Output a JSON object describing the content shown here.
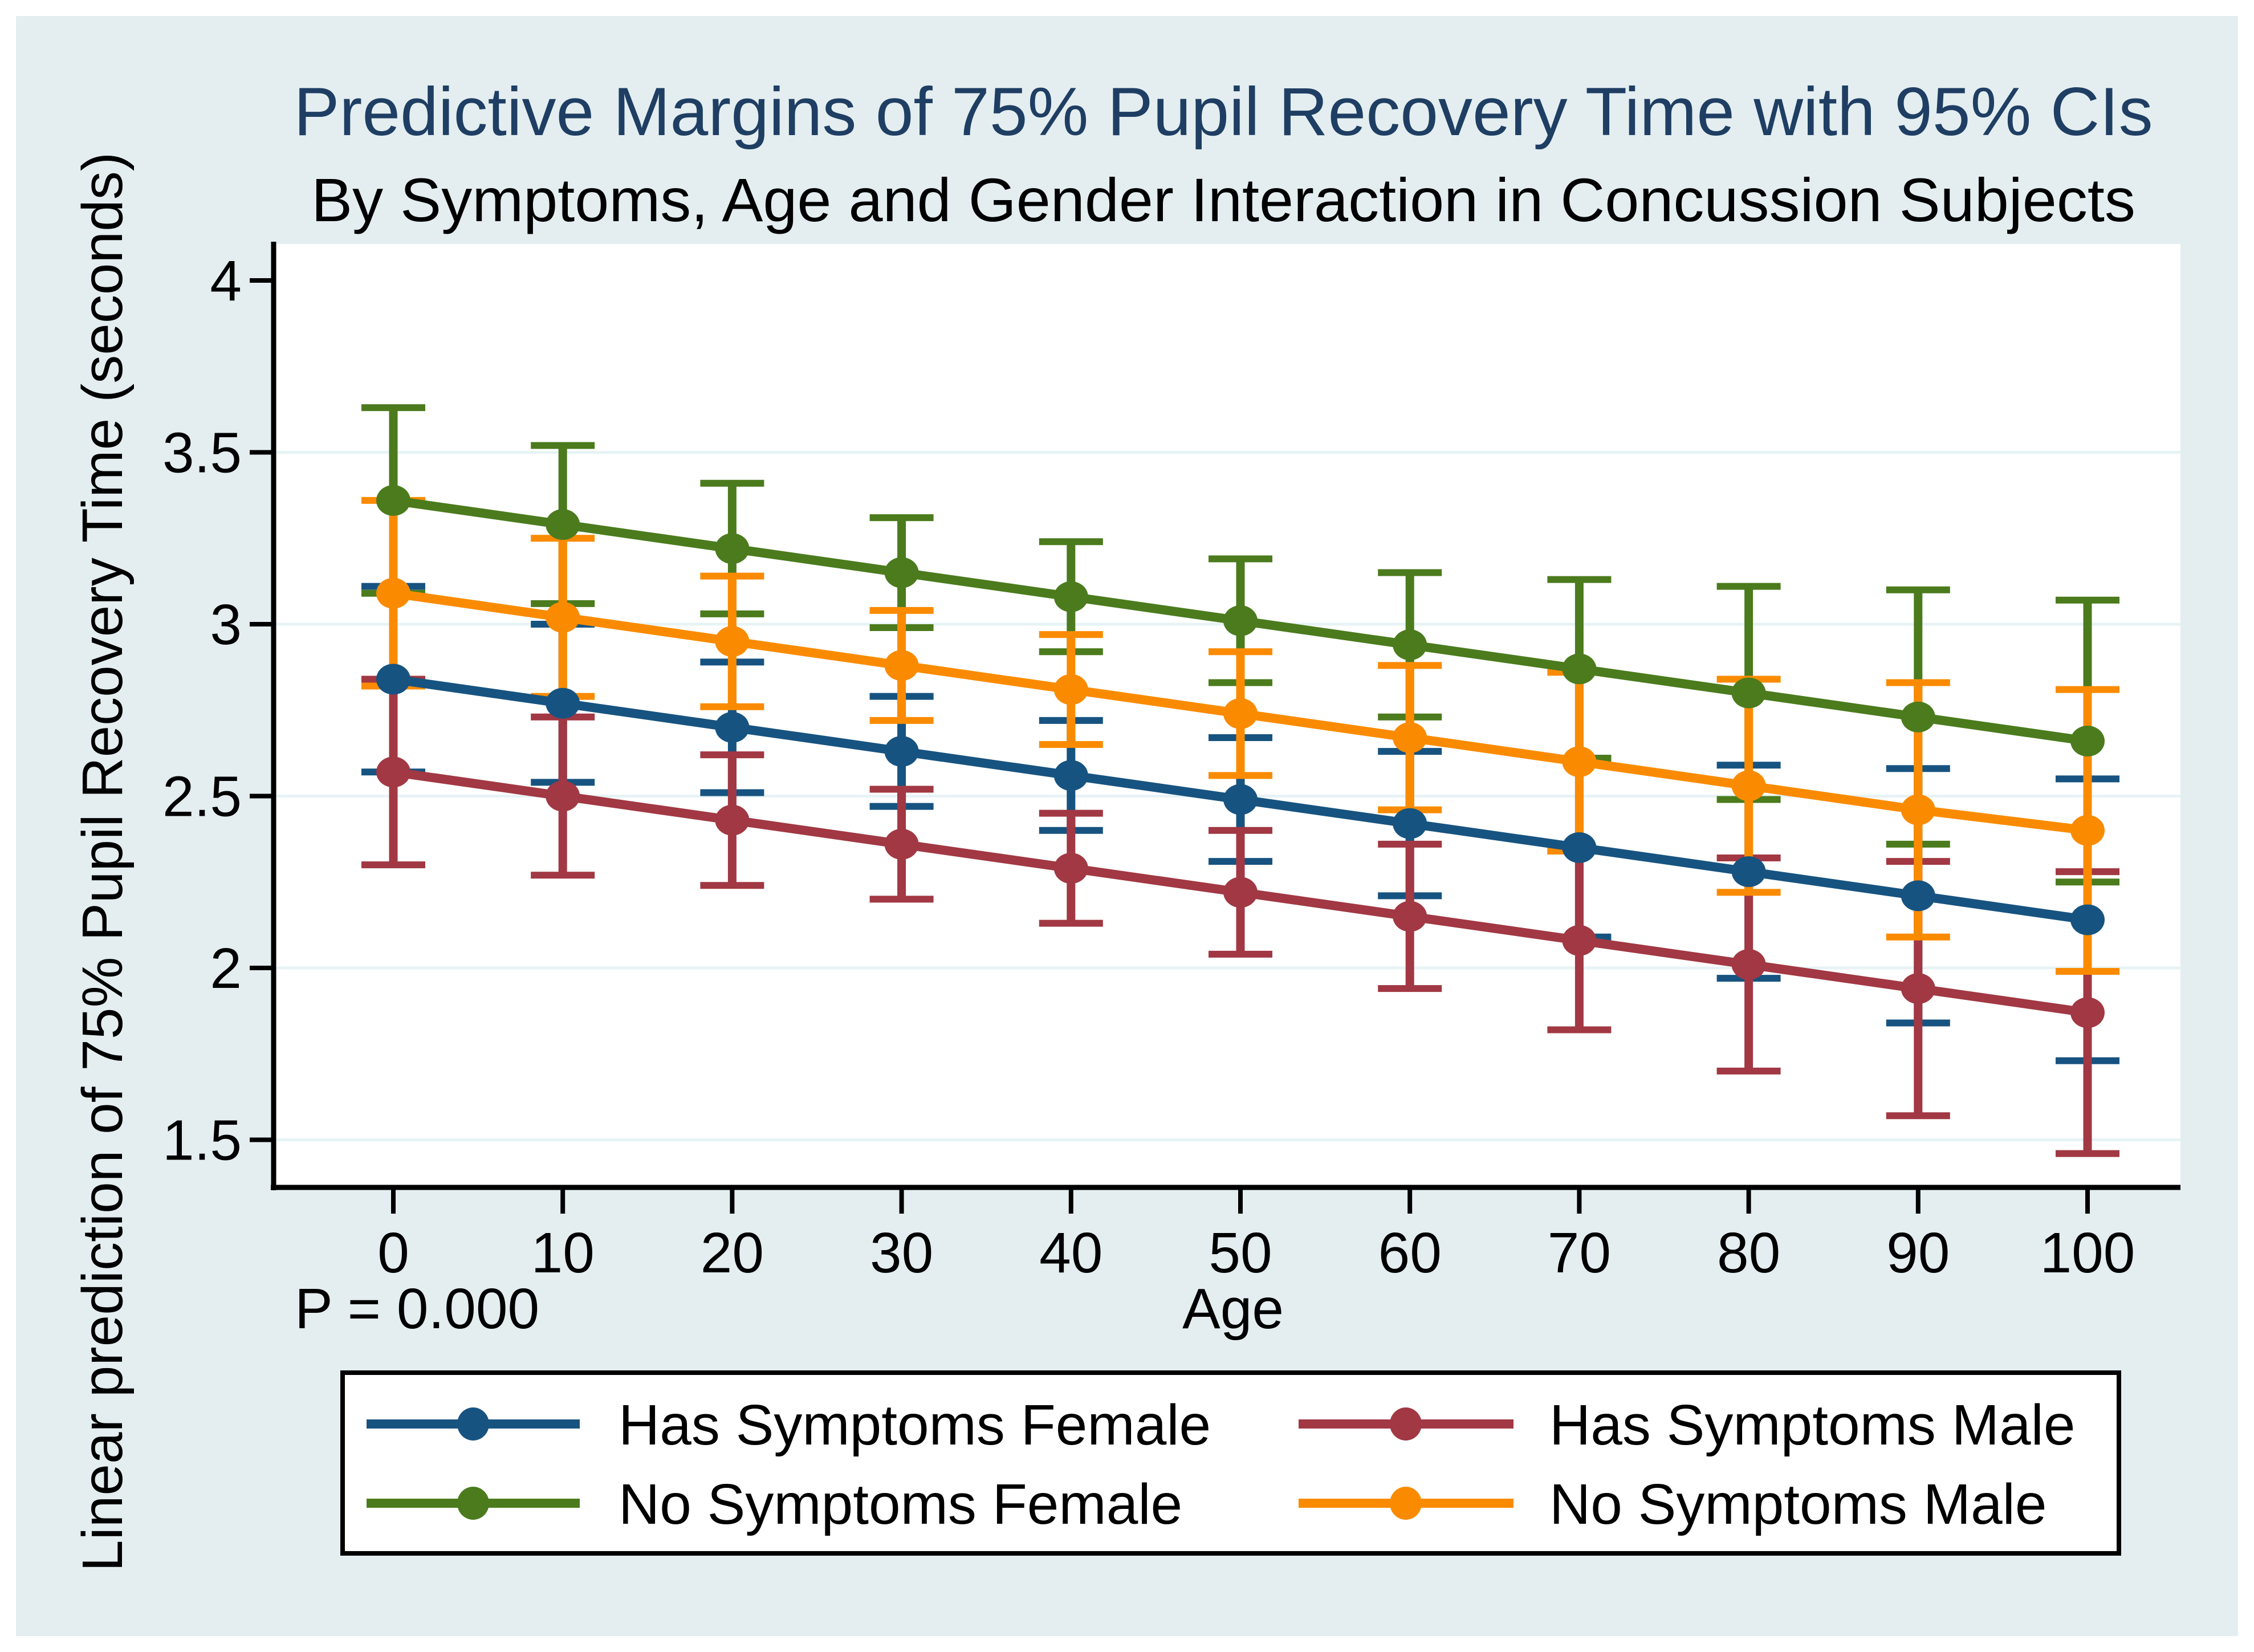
{
  "colors": {
    "canvas_background": "#e4eef0",
    "plot_background": "#ffffff",
    "gridline": "#e7f3f5",
    "axis": "#000000",
    "title_text": "#1f3e63",
    "body_text": "#000000",
    "legend_background": "#ffffff",
    "legend_border": "#000000"
  },
  "chart_data": {
    "type": "line",
    "title": "Predictive Margins of 75% Pupil Recovery Time with 95% CIs",
    "subtitle": "By Symptoms, Age and Gender Interaction in Concussion Subjects",
    "xlabel": "Age",
    "ylabel": "Linear prediction of 75% Pupil Recovery Time (seconds)",
    "annotation": "P = 0.000",
    "x": [
      0,
      10,
      20,
      30,
      40,
      50,
      60,
      70,
      80,
      90,
      100
    ],
    "xtick_labels": [
      "0",
      "10",
      "20",
      "30",
      "40",
      "50",
      "60",
      "70",
      "80",
      "90",
      "100"
    ],
    "ytick_labels": [
      "1.5",
      "2",
      "2.5",
      "3",
      "3.5",
      "4"
    ],
    "xlim": [
      -7,
      105.5
    ],
    "ylim": [
      1.36,
      4.11
    ],
    "grid": "horizontal gridlines at y ticks",
    "legend_position": "bottom box, 2 columns",
    "error_bars": "95% confidence intervals with caps",
    "series": [
      {
        "name": "Has Symptoms Female",
        "color": "#175380",
        "values": [
          2.84,
          2.77,
          2.7,
          2.63,
          2.56,
          2.49,
          2.42,
          2.35,
          2.28,
          2.21,
          2.14
        ],
        "ci_upper": [
          3.11,
          3.0,
          2.89,
          2.79,
          2.72,
          2.67,
          2.63,
          2.61,
          2.59,
          2.58,
          2.55
        ],
        "ci_lower": [
          2.57,
          2.54,
          2.51,
          2.47,
          2.4,
          2.31,
          2.21,
          2.09,
          1.97,
          1.84,
          1.73
        ]
      },
      {
        "name": "Has Symptoms Male",
        "color": "#a13843",
        "values": [
          2.57,
          2.5,
          2.43,
          2.36,
          2.29,
          2.22,
          2.15,
          2.08,
          2.01,
          1.94,
          1.87
        ],
        "ci_upper": [
          2.84,
          2.73,
          2.62,
          2.52,
          2.45,
          2.4,
          2.36,
          2.34,
          2.32,
          2.31,
          2.28
        ],
        "ci_lower": [
          2.3,
          2.27,
          2.24,
          2.2,
          2.13,
          2.04,
          1.94,
          1.82,
          1.7,
          1.57,
          1.46
        ]
      },
      {
        "name": "No Symptoms Female",
        "color": "#4b7b1d",
        "values": [
          3.36,
          3.29,
          3.22,
          3.15,
          3.08,
          3.01,
          2.94,
          2.87,
          2.8,
          2.73,
          2.66
        ],
        "ci_upper": [
          3.63,
          3.52,
          3.41,
          3.31,
          3.24,
          3.19,
          3.15,
          3.13,
          3.11,
          3.1,
          3.07
        ],
        "ci_lower": [
          3.09,
          3.06,
          3.03,
          2.99,
          2.92,
          2.83,
          2.73,
          2.61,
          2.49,
          2.36,
          2.25
        ]
      },
      {
        "name": "No Symptoms Male",
        "color": "#fa8b00",
        "values": [
          3.09,
          3.02,
          2.95,
          2.88,
          2.81,
          2.74,
          2.67,
          2.6,
          2.53,
          2.46,
          2.4
        ],
        "ci_upper": [
          3.36,
          3.25,
          3.14,
          3.04,
          2.97,
          2.92,
          2.88,
          2.86,
          2.84,
          2.83,
          2.81
        ],
        "ci_lower": [
          2.82,
          2.79,
          2.76,
          2.72,
          2.65,
          2.56,
          2.46,
          2.34,
          2.22,
          2.09,
          1.99
        ]
      }
    ],
    "legend_entries": [
      "Has Symptoms Female",
      "Has Symptoms Male",
      "No Symptoms Female",
      "No Symptoms Male"
    ]
  }
}
